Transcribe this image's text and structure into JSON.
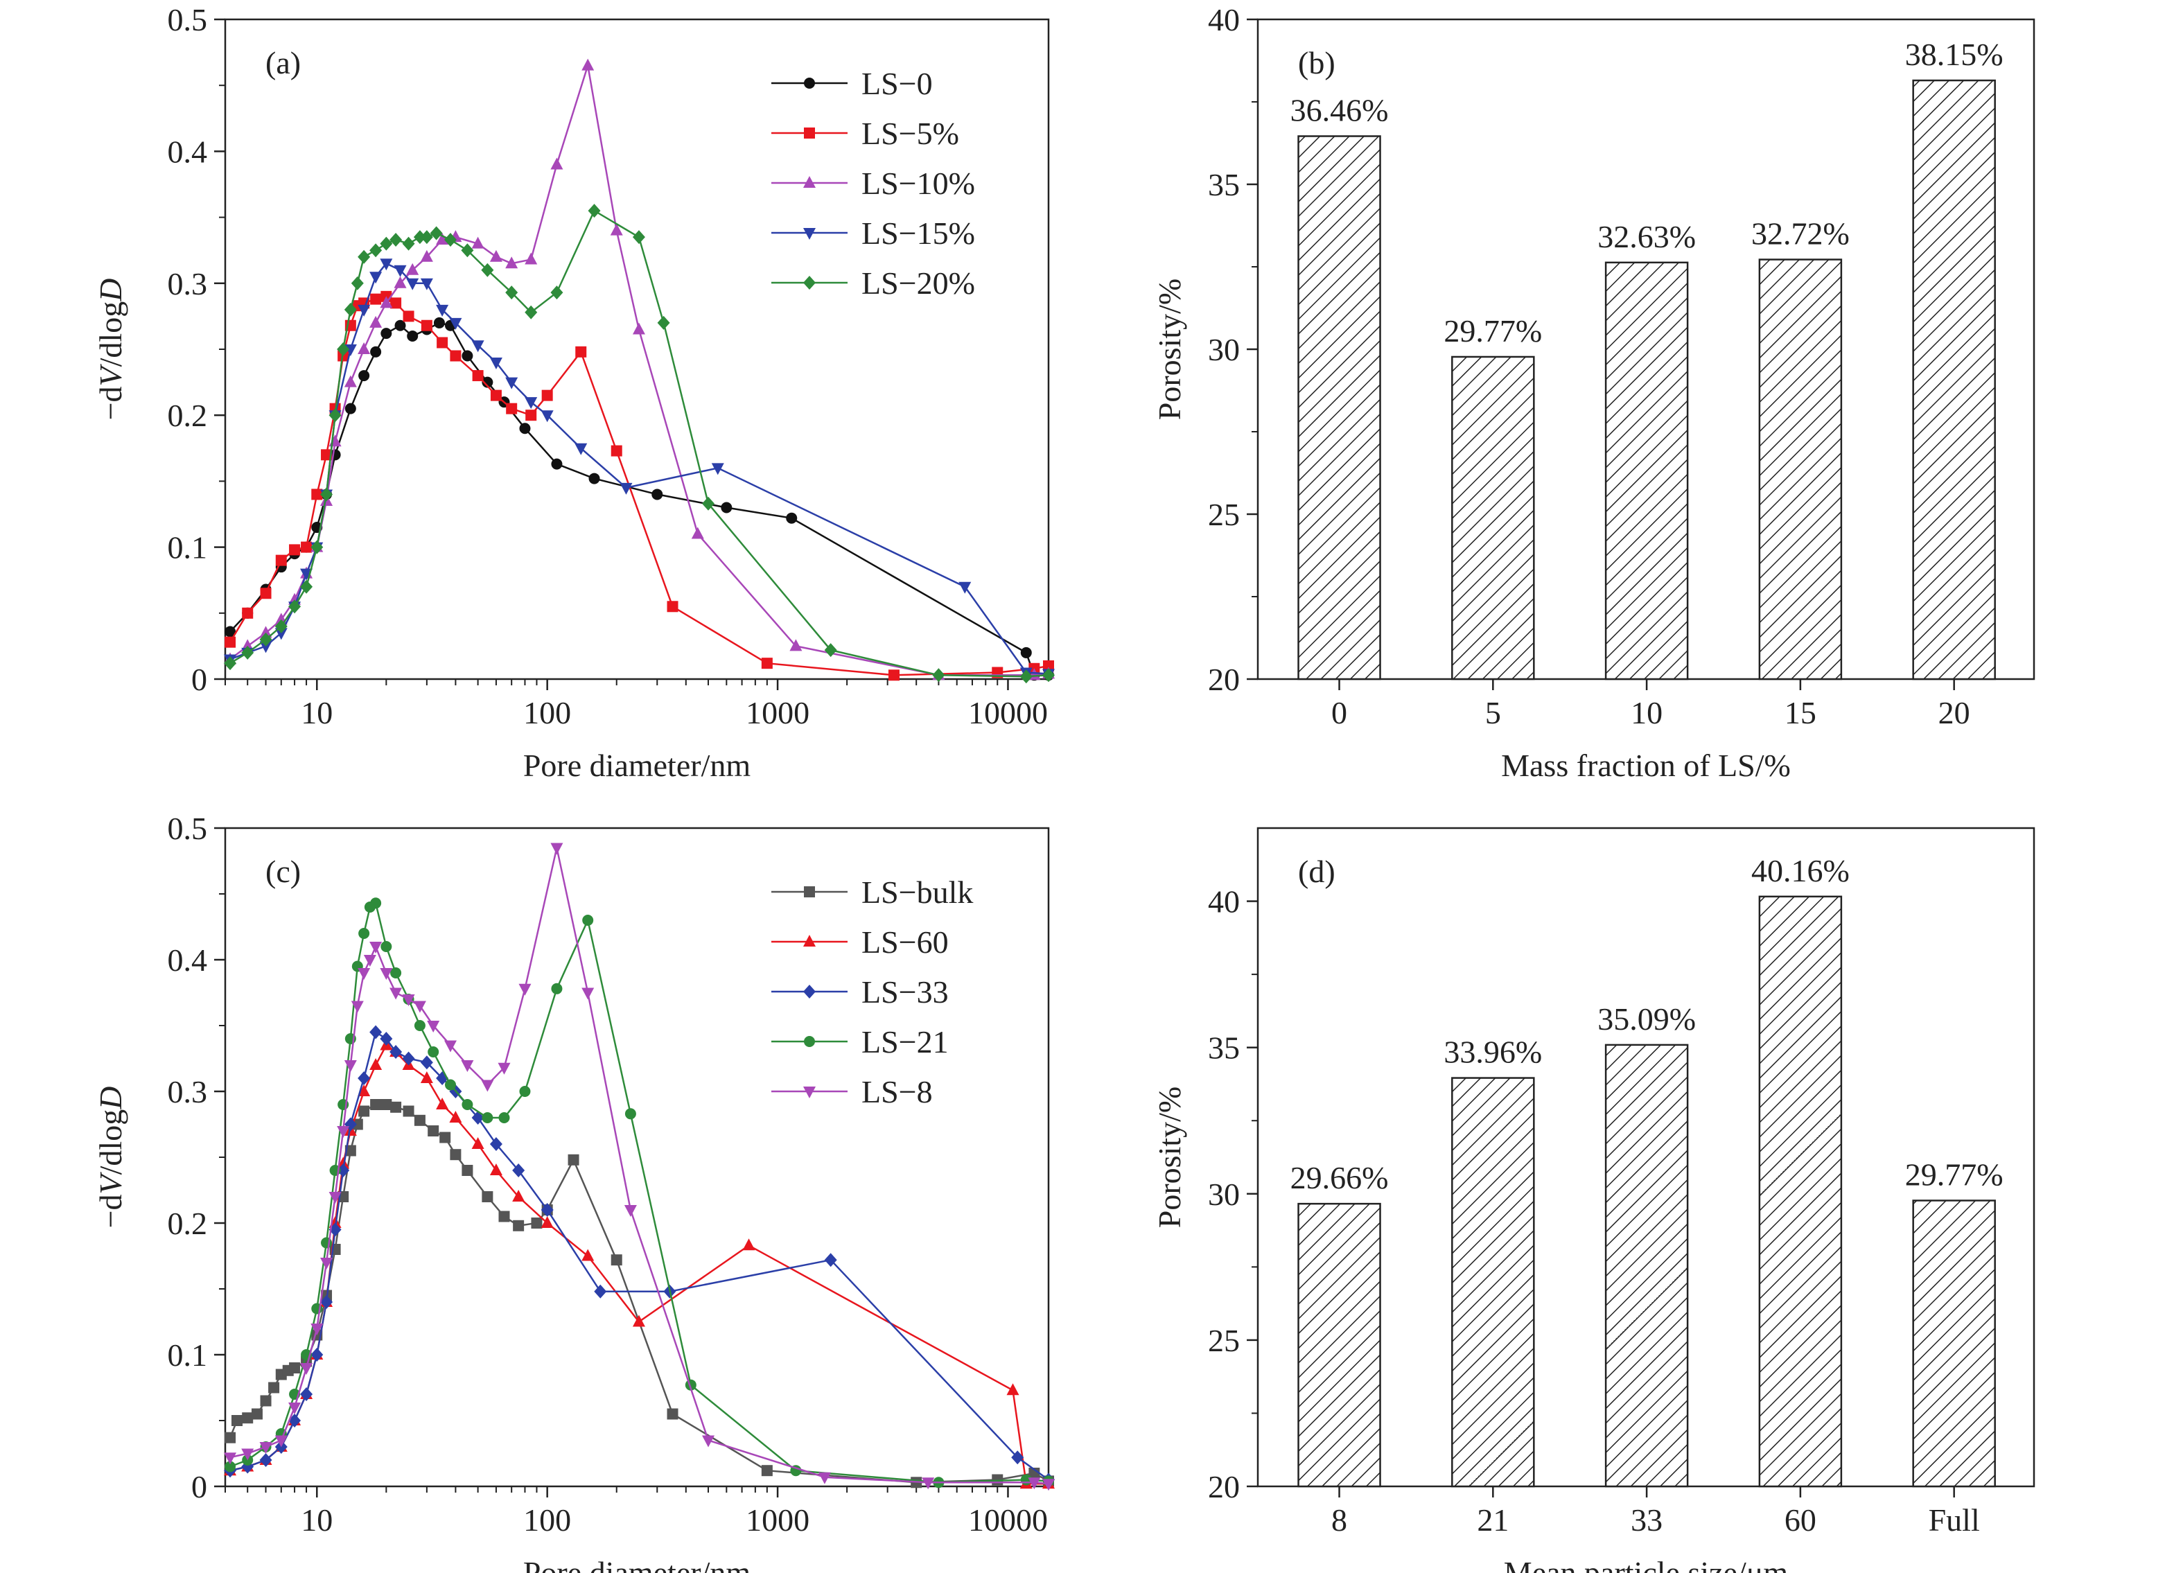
{
  "chart_data": [
    {
      "panel": "(a)",
      "type": "line",
      "xlabel": "Pore diameter/nm",
      "ylabel_parts": [
        "−d",
        "V",
        "/dlog",
        "D"
      ],
      "xscale": "log",
      "xlim": [
        4,
        15000
      ],
      "ylim": [
        0,
        0.5
      ],
      "xticks": [
        {
          "v": 10,
          "label": "10"
        },
        {
          "v": 100,
          "label": "100"
        },
        {
          "v": 1000,
          "label": "1000"
        },
        {
          "v": 10000,
          "label": "10000"
        }
      ],
      "yticks": [
        {
          "v": 0,
          "label": "0"
        },
        {
          "v": 0.1,
          "label": "0.1"
        },
        {
          "v": 0.2,
          "label": "0.2"
        },
        {
          "v": 0.3,
          "label": "0.3"
        },
        {
          "v": 0.4,
          "label": "0.4"
        },
        {
          "v": 0.5,
          "label": "0.5"
        }
      ],
      "legend_position": "top-right",
      "series": [
        {
          "name": "LS−0",
          "color": "#111111",
          "marker": "circle",
          "x": [
            4.2,
            5,
            6,
            7,
            8,
            9,
            10,
            11,
            12,
            14,
            16,
            18,
            20,
            23,
            26,
            30,
            34,
            38,
            45,
            55,
            65,
            80,
            110,
            160,
            300,
            600,
            1150,
            12000,
            13000,
            15000
          ],
          "y": [
            0.036,
            0.05,
            0.068,
            0.085,
            0.095,
            0.1,
            0.115,
            0.14,
            0.17,
            0.205,
            0.23,
            0.248,
            0.262,
            0.268,
            0.26,
            0.265,
            0.27,
            0.268,
            0.245,
            0.225,
            0.21,
            0.19,
            0.163,
            0.152,
            0.14,
            0.13,
            0.122,
            0.02,
            0.003,
            0.003
          ]
        },
        {
          "name": "LS−5%",
          "color": "#e8161e",
          "marker": "square",
          "x": [
            4.2,
            5,
            6,
            7,
            8,
            9,
            10,
            11,
            12,
            13,
            14,
            15,
            16,
            18,
            20,
            22,
            25,
            30,
            35,
            40,
            50,
            60,
            70,
            85,
            100,
            140,
            200,
            350,
            900,
            3200,
            9000,
            13000,
            15000
          ],
          "y": [
            0.028,
            0.05,
            0.065,
            0.09,
            0.098,
            0.1,
            0.14,
            0.17,
            0.205,
            0.245,
            0.268,
            0.283,
            0.285,
            0.288,
            0.29,
            0.285,
            0.275,
            0.268,
            0.255,
            0.245,
            0.23,
            0.215,
            0.205,
            0.2,
            0.215,
            0.248,
            0.173,
            0.055,
            0.012,
            0.003,
            0.005,
            0.008,
            0.01
          ]
        },
        {
          "name": "LS−10%",
          "color": "#a847b8",
          "marker": "triangle-up",
          "x": [
            4.2,
            5,
            6,
            7,
            8,
            9,
            10,
            11,
            12,
            14,
            16,
            18,
            20,
            23,
            26,
            30,
            35,
            40,
            50,
            60,
            70,
            85,
            110,
            150,
            200,
            250,
            450,
            1200,
            5000,
            13000,
            15000
          ],
          "y": [
            0.015,
            0.025,
            0.035,
            0.045,
            0.06,
            0.08,
            0.1,
            0.135,
            0.18,
            0.225,
            0.25,
            0.27,
            0.285,
            0.3,
            0.31,
            0.32,
            0.333,
            0.335,
            0.33,
            0.32,
            0.315,
            0.318,
            0.39,
            0.465,
            0.34,
            0.265,
            0.11,
            0.025,
            0.003,
            0.003,
            0.004
          ]
        },
        {
          "name": "LS−15%",
          "color": "#2b3fa8",
          "marker": "triangle-down",
          "x": [
            4.2,
            5,
            6,
            7,
            8,
            9,
            10,
            11,
            12,
            14,
            16,
            18,
            20,
            23,
            26,
            30,
            35,
            40,
            50,
            60,
            70,
            85,
            100,
            140,
            220,
            550,
            6500,
            12000,
            15000
          ],
          "y": [
            0.015,
            0.02,
            0.025,
            0.035,
            0.055,
            0.08,
            0.1,
            0.14,
            0.2,
            0.25,
            0.28,
            0.305,
            0.315,
            0.31,
            0.3,
            0.3,
            0.28,
            0.27,
            0.253,
            0.24,
            0.225,
            0.21,
            0.2,
            0.175,
            0.145,
            0.16,
            0.07,
            0.005,
            0.004
          ]
        },
        {
          "name": "LS−20%",
          "color": "#2e8b3a",
          "marker": "diamond",
          "x": [
            4.2,
            5,
            6,
            7,
            8,
            9,
            10,
            11,
            12,
            13,
            14,
            15,
            16,
            18,
            20,
            22,
            25,
            28,
            30,
            33,
            38,
            45,
            55,
            70,
            85,
            110,
            160,
            250,
            320,
            500,
            1700,
            5000,
            12000,
            15000
          ],
          "y": [
            0.012,
            0.02,
            0.03,
            0.04,
            0.055,
            0.07,
            0.1,
            0.14,
            0.2,
            0.25,
            0.28,
            0.3,
            0.32,
            0.325,
            0.33,
            0.333,
            0.33,
            0.335,
            0.335,
            0.338,
            0.333,
            0.325,
            0.31,
            0.293,
            0.278,
            0.293,
            0.355,
            0.335,
            0.27,
            0.133,
            0.022,
            0.003,
            0.002,
            0.003
          ]
        }
      ]
    },
    {
      "panel": "(b)",
      "type": "bar",
      "xlabel": "Mass fraction of LS/%",
      "ylabel": "Porosity/%",
      "ylim": [
        20,
        40
      ],
      "yticks": [
        20,
        25,
        30,
        35,
        40
      ],
      "categories": [
        "0",
        "5",
        "10",
        "15",
        "20"
      ],
      "values": [
        36.46,
        29.77,
        32.63,
        32.72,
        38.15
      ],
      "value_labels": [
        "36.46%",
        "29.77%",
        "32.63%",
        "32.72%",
        "38.15%"
      ],
      "bar_fill": "hatched"
    },
    {
      "panel": "(c)",
      "type": "line",
      "xlabel": "Pore diameter/nm",
      "ylabel_parts": [
        "−d",
        "V",
        "/dlog",
        "D"
      ],
      "xscale": "log",
      "xlim": [
        4,
        15000
      ],
      "ylim": [
        0,
        0.5
      ],
      "xticks": [
        {
          "v": 10,
          "label": "10"
        },
        {
          "v": 100,
          "label": "100"
        },
        {
          "v": 1000,
          "label": "1000"
        },
        {
          "v": 10000,
          "label": "10000"
        }
      ],
      "yticks": [
        {
          "v": 0,
          "label": "0"
        },
        {
          "v": 0.1,
          "label": "0.1"
        },
        {
          "v": 0.2,
          "label": "0.2"
        },
        {
          "v": 0.3,
          "label": "0.3"
        },
        {
          "v": 0.4,
          "label": "0.4"
        },
        {
          "v": 0.5,
          "label": "0.5"
        }
      ],
      "legend_position": "top-right",
      "series": [
        {
          "name": "LS−bulk",
          "color": "#555555",
          "marker": "square",
          "x": [
            4.2,
            4.5,
            5,
            5.5,
            6,
            6.5,
            7,
            7.5,
            8,
            9,
            10,
            11,
            12,
            13,
            14,
            15,
            16,
            18,
            20,
            22,
            25,
            28,
            32,
            36,
            40,
            45,
            55,
            65,
            75,
            90,
            100,
            130,
            200,
            350,
            900,
            4000,
            9000,
            13000,
            15000
          ],
          "y": [
            0.037,
            0.05,
            0.052,
            0.055,
            0.065,
            0.075,
            0.085,
            0.088,
            0.09,
            0.095,
            0.115,
            0.145,
            0.18,
            0.22,
            0.255,
            0.275,
            0.285,
            0.29,
            0.29,
            0.288,
            0.285,
            0.278,
            0.27,
            0.265,
            0.252,
            0.24,
            0.22,
            0.205,
            0.198,
            0.2,
            0.21,
            0.248,
            0.172,
            0.055,
            0.012,
            0.003,
            0.005,
            0.01,
            0.004
          ]
        },
        {
          "name": "LS−60",
          "color": "#e8161e",
          "marker": "triangle-up",
          "x": [
            4.2,
            5,
            6,
            7,
            8,
            9,
            10,
            11,
            12,
            13,
            14,
            16,
            18,
            20,
            22,
            25,
            30,
            35,
            40,
            50,
            60,
            75,
            100,
            150,
            250,
            750,
            10500,
            12000,
            15000
          ],
          "y": [
            0.012,
            0.015,
            0.02,
            0.03,
            0.05,
            0.07,
            0.1,
            0.14,
            0.2,
            0.245,
            0.27,
            0.3,
            0.32,
            0.335,
            0.33,
            0.32,
            0.31,
            0.29,
            0.28,
            0.26,
            0.24,
            0.22,
            0.2,
            0.175,
            0.125,
            0.183,
            0.073,
            0.002,
            0.002
          ]
        },
        {
          "name": "LS−33",
          "color": "#2b3fa8",
          "marker": "diamond",
          "x": [
            4.2,
            5,
            6,
            7,
            8,
            9,
            10,
            11,
            12,
            13,
            14,
            16,
            18,
            20,
            22,
            25,
            30,
            35,
            40,
            50,
            60,
            75,
            100,
            170,
            340,
            1700,
            11000,
            15000
          ],
          "y": [
            0.012,
            0.015,
            0.02,
            0.03,
            0.05,
            0.07,
            0.1,
            0.14,
            0.195,
            0.24,
            0.275,
            0.31,
            0.345,
            0.34,
            0.33,
            0.325,
            0.322,
            0.31,
            0.3,
            0.28,
            0.26,
            0.24,
            0.21,
            0.148,
            0.148,
            0.172,
            0.022,
            0.005
          ]
        },
        {
          "name": "LS−21",
          "color": "#2e8b3a",
          "marker": "circle",
          "x": [
            4.2,
            5,
            6,
            7,
            8,
            9,
            10,
            11,
            12,
            13,
            14,
            15,
            16,
            17,
            18,
            20,
            22,
            25,
            28,
            32,
            38,
            45,
            55,
            65,
            80,
            110,
            150,
            230,
            420,
            1200,
            5000,
            12000,
            15000
          ],
          "y": [
            0.015,
            0.02,
            0.03,
            0.04,
            0.07,
            0.1,
            0.135,
            0.185,
            0.24,
            0.29,
            0.34,
            0.395,
            0.42,
            0.44,
            0.443,
            0.41,
            0.39,
            0.37,
            0.35,
            0.33,
            0.305,
            0.29,
            0.28,
            0.28,
            0.3,
            0.378,
            0.43,
            0.283,
            0.077,
            0.012,
            0.003,
            0.005,
            0.004
          ]
        },
        {
          "name": "LS−8",
          "color": "#a847b8",
          "marker": "triangle-down",
          "x": [
            4.2,
            5,
            6,
            7,
            8,
            9,
            10,
            11,
            12,
            13,
            14,
            15,
            16,
            17,
            18,
            20,
            22,
            25,
            28,
            32,
            38,
            45,
            55,
            65,
            80,
            110,
            150,
            230,
            500,
            1600,
            4500,
            13000,
            15000
          ],
          "y": [
            0.022,
            0.025,
            0.03,
            0.035,
            0.06,
            0.09,
            0.12,
            0.17,
            0.22,
            0.27,
            0.32,
            0.365,
            0.39,
            0.4,
            0.41,
            0.39,
            0.375,
            0.37,
            0.365,
            0.35,
            0.335,
            0.32,
            0.305,
            0.318,
            0.378,
            0.485,
            0.375,
            0.21,
            0.035,
            0.007,
            0.003,
            0.003,
            0.002
          ]
        }
      ]
    },
    {
      "panel": "(d)",
      "type": "bar",
      "xlabel": "Mean particle size/μm",
      "ylabel": "Porosity/%",
      "ylim": [
        20,
        42.5
      ],
      "yticks": [
        20,
        25,
        30,
        35,
        40
      ],
      "categories": [
        "8",
        "21",
        "33",
        "60",
        "Full"
      ],
      "values": [
        29.66,
        33.96,
        35.09,
        40.16,
        29.77
      ],
      "value_labels": [
        "29.66%",
        "33.96%",
        "35.09%",
        "40.16%",
        "29.77%"
      ],
      "bar_fill": "hatched"
    }
  ]
}
